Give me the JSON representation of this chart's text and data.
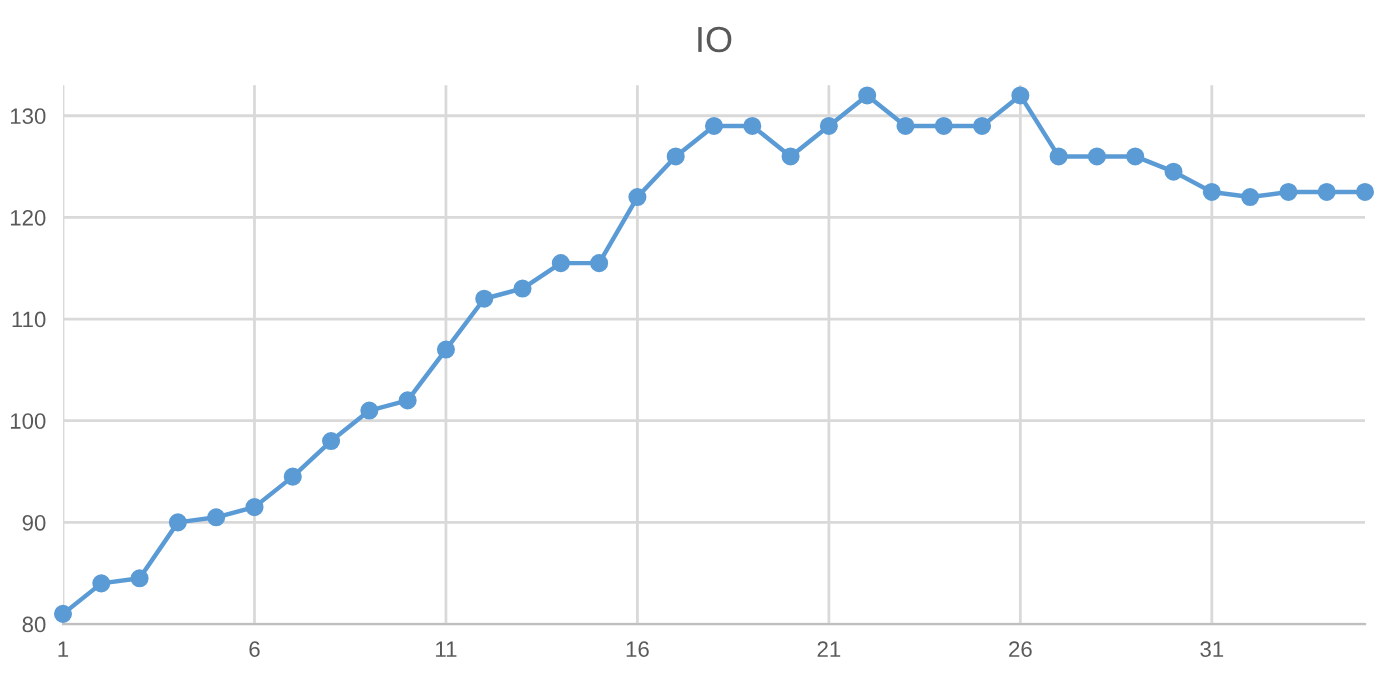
{
  "chart_data": {
    "type": "line",
    "title": "IO",
    "x": [
      1,
      2,
      3,
      4,
      5,
      6,
      7,
      8,
      9,
      10,
      11,
      12,
      13,
      14,
      15,
      16,
      17,
      18,
      19,
      20,
      21,
      22,
      23,
      24,
      25,
      26,
      27,
      28,
      29,
      30,
      31,
      32,
      33,
      34,
      35
    ],
    "series": [
      {
        "color": "#5b9bd5",
        "values": [
          81,
          84,
          84.5,
          90,
          90.5,
          91.5,
          94.5,
          98,
          101,
          102,
          107,
          112,
          113,
          115.5,
          115.5,
          122,
          126,
          129,
          129,
          126,
          129,
          132,
          129,
          129,
          129,
          132,
          126,
          126,
          126,
          124.5,
          122.5,
          122,
          122.5,
          122.5,
          122.5
        ]
      }
    ],
    "xlim": [
      1,
      35
    ],
    "xticks": [
      1,
      6,
      11,
      16,
      21,
      26,
      31
    ],
    "ylim": [
      80,
      133
    ],
    "yticks": [
      80,
      90,
      100,
      110,
      120,
      130
    ],
    "grid": true,
    "marker": "circle",
    "line_style": "solid",
    "legend": false
  }
}
